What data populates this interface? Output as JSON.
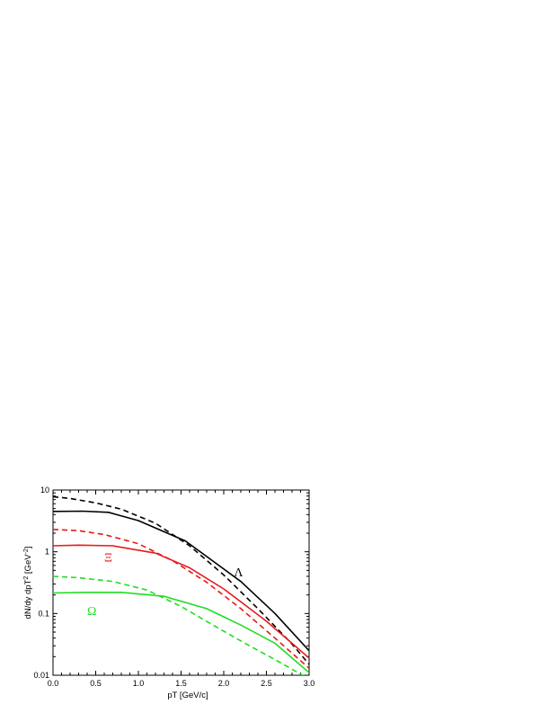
{
  "chart_data": {
    "type": "line",
    "title": "",
    "xlabel": "pT [GeV/c]",
    "ylabel": "dN/dy dpT",
    "ylabel_sup1": "2",
    "ylabel_mid": " [GeV",
    "ylabel_sup2": "-2",
    "ylabel_end": "]",
    "xlim": [
      0.0,
      3.0
    ],
    "ylim": [
      0.01,
      10
    ],
    "yscale": "log",
    "grid": false,
    "x_ticks": [
      "0.0",
      "0.5",
      "1.0",
      "1.5",
      "2.0",
      "2.5",
      "3.0"
    ],
    "y_ticks": [
      "0.01",
      "0.1",
      "1",
      "10"
    ],
    "colors": {
      "Lambda": "#000000",
      "Xi": "#e8191b",
      "Omega": "#22dd22"
    },
    "series": [
      {
        "particle": "Lambda",
        "style": "solid",
        "x": [
          0.0,
          0.35,
          0.65,
          1.0,
          1.55,
          2.2,
          2.6,
          3.0
        ],
        "y": [
          4.5,
          4.55,
          4.35,
          3.2,
          1.5,
          0.33,
          0.1,
          0.025
        ]
      },
      {
        "particle": "Lambda",
        "style": "dashed",
        "x": [
          0.0,
          0.2,
          0.5,
          0.8,
          1.2,
          1.6,
          2.0,
          2.4,
          2.8,
          3.0
        ],
        "y": [
          7.8,
          7.3,
          6.2,
          4.9,
          2.9,
          1.25,
          0.42,
          0.12,
          0.032,
          0.015
        ]
      },
      {
        "particle": "Xi",
        "style": "solid",
        "x": [
          0.0,
          0.3,
          0.7,
          1.2,
          1.6,
          2.0,
          2.5,
          3.0
        ],
        "y": [
          1.25,
          1.28,
          1.25,
          0.95,
          0.55,
          0.25,
          0.075,
          0.019
        ]
      },
      {
        "particle": "Xi",
        "style": "dashed",
        "x": [
          0.0,
          0.3,
          0.6,
          1.0,
          1.4,
          1.8,
          2.2,
          2.6,
          3.0
        ],
        "y": [
          2.3,
          2.2,
          1.9,
          1.35,
          0.72,
          0.32,
          0.12,
          0.04,
          0.013
        ]
      },
      {
        "particle": "Omega",
        "style": "solid",
        "x": [
          0.0,
          0.4,
          0.8,
          1.3,
          1.8,
          2.2,
          2.6,
          3.0
        ],
        "y": [
          0.215,
          0.22,
          0.22,
          0.19,
          0.12,
          0.065,
          0.033,
          0.011
        ]
      },
      {
        "particle": "Omega",
        "style": "dashed",
        "x": [
          0.0,
          0.3,
          0.7,
          1.1,
          1.5,
          1.9,
          2.3,
          2.6,
          2.95
        ],
        "y": [
          0.4,
          0.38,
          0.33,
          0.24,
          0.13,
          0.062,
          0.03,
          0.018,
          0.0095
        ]
      }
    ],
    "annotations": [
      {
        "text": "Λ",
        "particle": "Lambda",
        "x": 2.12,
        "y": 0.4
      },
      {
        "text": "Ξ",
        "particle": "Xi",
        "x": 0.6,
        "y": 0.7
      },
      {
        "text": "Ω",
        "particle": "Omega",
        "x": 0.4,
        "y": 0.095
      }
    ]
  }
}
